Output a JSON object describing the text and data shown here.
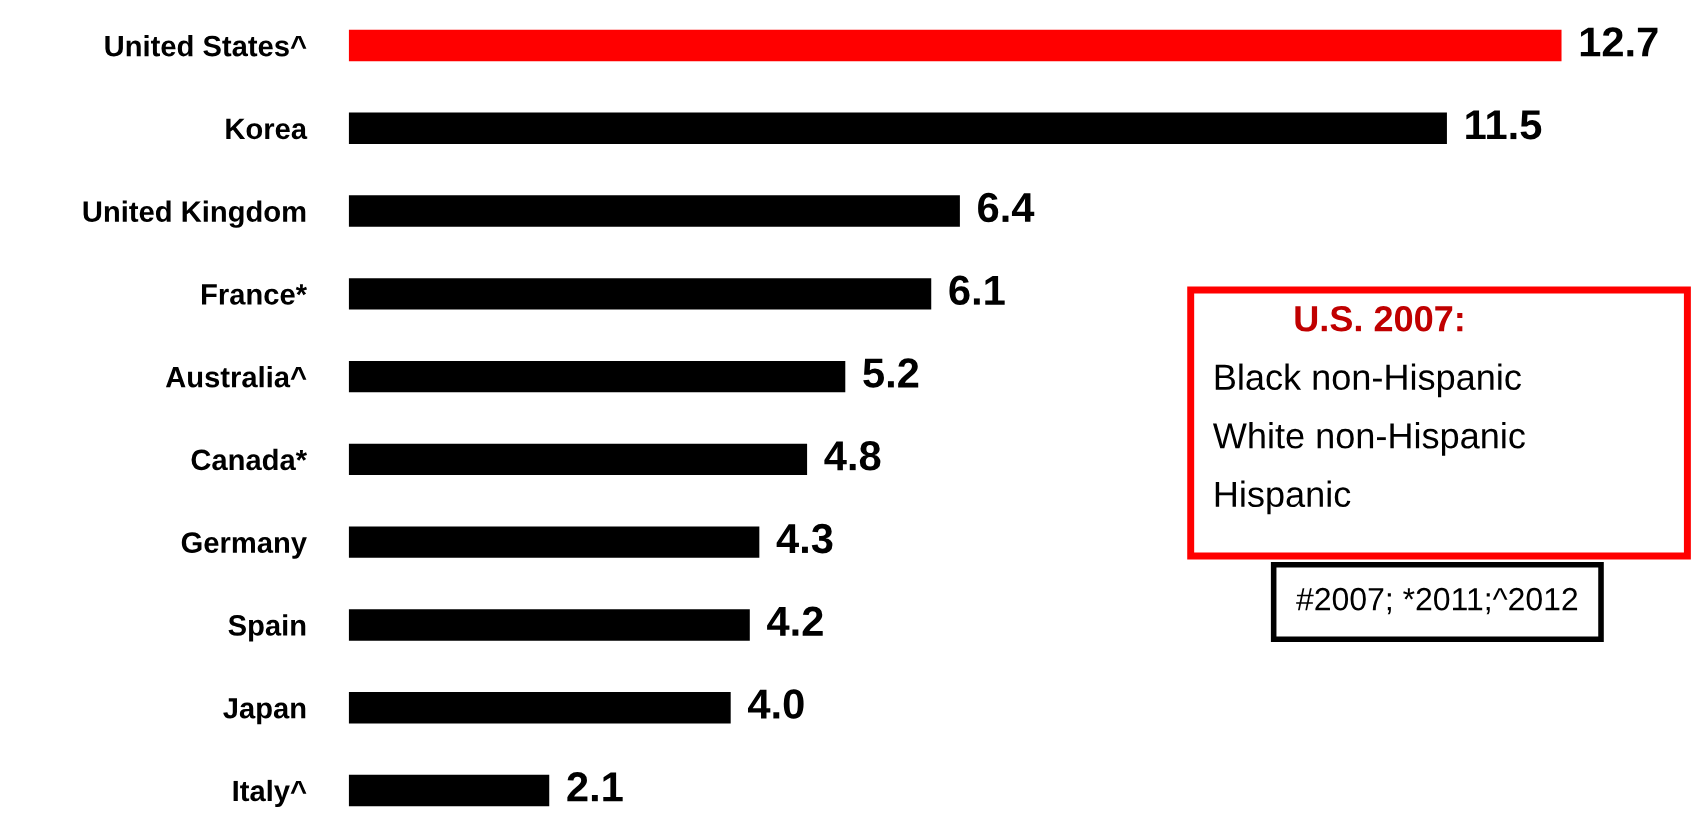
{
  "chart_data": {
    "type": "bar",
    "orientation": "horizontal",
    "categories": [
      "United States^",
      "Korea",
      "United Kingdom",
      "France*",
      "Australia^",
      "Canada*",
      "Germany",
      "Spain",
      "Japan",
      "Italy^"
    ],
    "values": [
      12.7,
      11.5,
      6.4,
      6.1,
      5.2,
      4.8,
      4.3,
      4.2,
      4.0,
      2.1
    ],
    "colors": [
      "#ff0000",
      "#000000",
      "#000000",
      "#000000",
      "#000000",
      "#000000",
      "#000000",
      "#000000",
      "#000000",
      "#000000"
    ],
    "value_labels": [
      "12.7",
      "11.5",
      "6.4",
      "6.1",
      "5.2",
      "4.8",
      "4.3",
      "4.2",
      "4.0",
      "2.1"
    ],
    "tick_labels": "y",
    "grid": false,
    "annotations": [
      "U.S. 2007:",
      "Black non-Hispanic",
      "White non-Hispanic",
      "Hispanic",
      "#2007; *2011;^2012"
    ]
  }
}
